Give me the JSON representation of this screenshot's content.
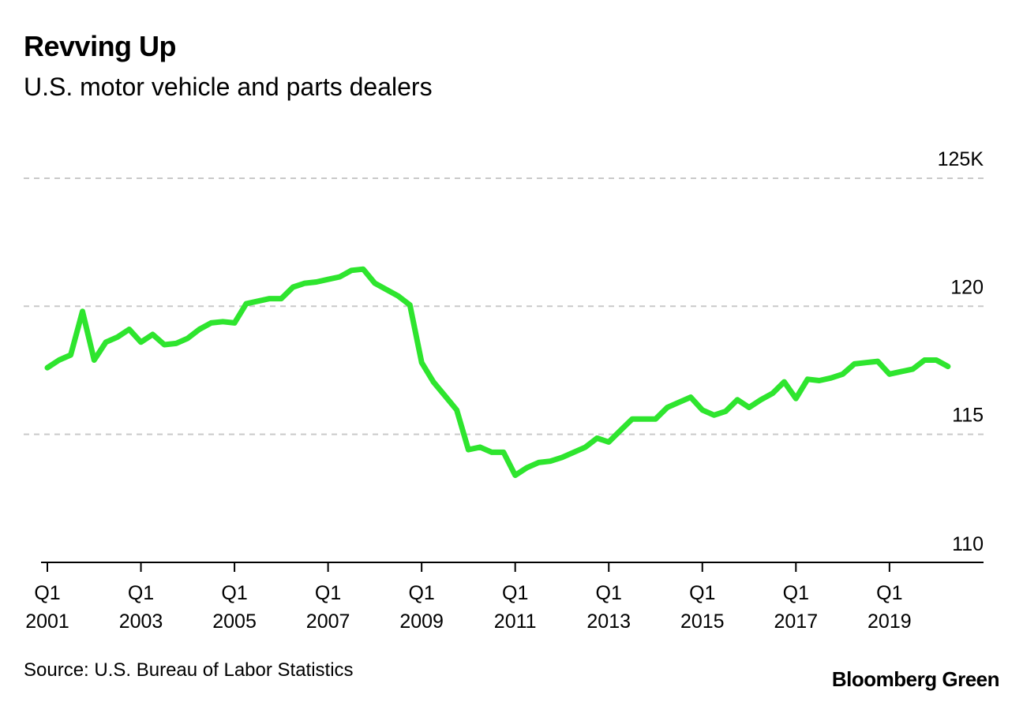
{
  "title": "Revving Up",
  "subtitle": "U.S. motor vehicle and parts dealers",
  "source": "Source: U.S. Bureau of Labor Statistics",
  "brand": "Bloomberg Green",
  "chart_data": {
    "type": "line",
    "title": "Revving Up",
    "subtitle": "U.S. motor vehicle and parts dealers",
    "xlabel": "",
    "ylabel": "",
    "ylim": [
      110,
      125
    ],
    "y_ticks": [
      {
        "value": 125,
        "label": "125K"
      },
      {
        "value": 120,
        "label": "120"
      },
      {
        "value": 115,
        "label": "115"
      },
      {
        "value": 110,
        "label": "110"
      }
    ],
    "x_ticks": [
      {
        "year": 2001,
        "line1": "Q1",
        "line2": "2001"
      },
      {
        "year": 2003,
        "line1": "Q1",
        "line2": "2003"
      },
      {
        "year": 2005,
        "line1": "Q1",
        "line2": "2005"
      },
      {
        "year": 2007,
        "line1": "Q1",
        "line2": "2007"
      },
      {
        "year": 2009,
        "line1": "Q1",
        "line2": "2009"
      },
      {
        "year": 2011,
        "line1": "Q1",
        "line2": "2011"
      },
      {
        "year": 2013,
        "line1": "Q1",
        "line2": "2013"
      },
      {
        "year": 2015,
        "line1": "Q1",
        "line2": "2015"
      },
      {
        "year": 2017,
        "line1": "Q1",
        "line2": "2017"
      },
      {
        "year": 2019,
        "line1": "Q1",
        "line2": "2019"
      }
    ],
    "grid": true,
    "legend": "none",
    "line_color": "#2ee52e",
    "series": [
      {
        "x": [
          "2001-Q1",
          "2001-Q2",
          "2001-Q3",
          "2001-Q4",
          "2002-Q1",
          "2002-Q2",
          "2002-Q3",
          "2002-Q4",
          "2003-Q1",
          "2003-Q2",
          "2003-Q3",
          "2003-Q4",
          "2004-Q1",
          "2004-Q2",
          "2004-Q3",
          "2004-Q4",
          "2005-Q1",
          "2005-Q2",
          "2005-Q3",
          "2005-Q4",
          "2006-Q1",
          "2006-Q2",
          "2006-Q3",
          "2006-Q4",
          "2007-Q1",
          "2007-Q2",
          "2007-Q3",
          "2007-Q4",
          "2008-Q1",
          "2008-Q2",
          "2008-Q3",
          "2008-Q4",
          "2009-Q1",
          "2009-Q2",
          "2009-Q3",
          "2009-Q4",
          "2010-Q1",
          "2010-Q2",
          "2010-Q3",
          "2010-Q4",
          "2011-Q1",
          "2011-Q2",
          "2011-Q3",
          "2011-Q4",
          "2012-Q1",
          "2012-Q2",
          "2012-Q3",
          "2012-Q4",
          "2013-Q1",
          "2013-Q2",
          "2013-Q3",
          "2013-Q4",
          "2014-Q1",
          "2014-Q2",
          "2014-Q3",
          "2014-Q4",
          "2015-Q1",
          "2015-Q2",
          "2015-Q3",
          "2015-Q4",
          "2016-Q1",
          "2016-Q2",
          "2016-Q3",
          "2016-Q4",
          "2017-Q1",
          "2017-Q2",
          "2017-Q3",
          "2017-Q4",
          "2018-Q1",
          "2018-Q2",
          "2018-Q3",
          "2018-Q4",
          "2019-Q1",
          "2019-Q2",
          "2019-Q3",
          "2019-Q4",
          "2020-Q1",
          "2020-Q2"
        ],
        "values": [
          117.6,
          117.9,
          118.1,
          119.8,
          117.9,
          118.6,
          118.8,
          119.1,
          118.6,
          118.9,
          118.5,
          118.55,
          118.75,
          119.1,
          119.35,
          119.4,
          119.35,
          120.1,
          120.2,
          120.3,
          120.3,
          120.75,
          120.9,
          120.95,
          121.05,
          121.15,
          121.4,
          121.45,
          120.9,
          120.65,
          120.4,
          120.05,
          117.8,
          117.05,
          116.5,
          115.95,
          114.4,
          114.5,
          114.3,
          114.3,
          113.4,
          113.7,
          113.9,
          113.95,
          114.1,
          114.3,
          114.5,
          114.85,
          114.7,
          115.15,
          115.6,
          115.6,
          115.6,
          116.05,
          116.25,
          116.45,
          115.95,
          115.75,
          115.9,
          116.35,
          116.05,
          116.35,
          116.6,
          117.05,
          116.4,
          117.15,
          117.1,
          117.2,
          117.35,
          117.75,
          117.8,
          117.85,
          117.35,
          117.45,
          117.55,
          117.9,
          117.9,
          117.65
        ]
      }
    ]
  }
}
